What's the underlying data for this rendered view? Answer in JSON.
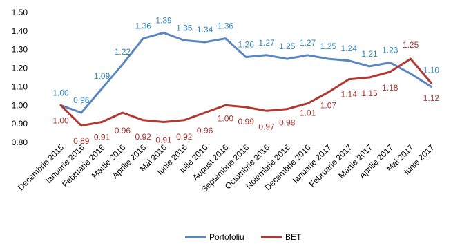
{
  "chart_data": {
    "type": "line",
    "categories": [
      "Decembrie 2015",
      "Ianuarie 2016",
      "Februarie 2016",
      "Martie 2016",
      "Aprilie 2016",
      "Mai 2016",
      "Iunie 2016",
      "Iulie 2016",
      "August 2016",
      "Septembrie 2016",
      "Octombrie 2016",
      "Noiembrie 2016",
      "Decembrie 2016",
      "Ianuarie 2017",
      "Februarie 2017",
      "Martie 2017",
      "Aprilie 2017",
      "Mai 2017",
      "Iunie 2017"
    ],
    "series": [
      {
        "name": "Portofoliu",
        "color": "#5b87c1",
        "label_color": "#2e86c1",
        "values": [
          1.0,
          0.96,
          1.09,
          1.22,
          1.36,
          1.39,
          1.35,
          1.34,
          1.36,
          1.26,
          1.27,
          1.25,
          1.27,
          1.25,
          1.24,
          1.21,
          1.23,
          1.17,
          1.1
        ],
        "labels": [
          "1.00",
          "0.96",
          "1.09",
          "1.22",
          "1.36",
          "1.39",
          "1.35",
          "1.34",
          "1.36",
          "1.26",
          "1.27",
          "1.25",
          "1.27",
          "1.25",
          "1.24",
          "1.21",
          "1.23",
          "",
          "1.10"
        ]
      },
      {
        "name": "BET",
        "color": "#b03a32",
        "label_color": "#a8322c",
        "values": [
          1.0,
          0.89,
          0.91,
          0.96,
          0.92,
          0.91,
          0.92,
          0.96,
          1.0,
          0.99,
          0.97,
          0.98,
          1.01,
          1.07,
          1.14,
          1.15,
          1.18,
          1.25,
          1.12
        ],
        "labels": [
          "1.00",
          "0.89",
          "0.91",
          "0.96",
          "0.92",
          "0.91",
          "0.92",
          "0.96",
          "1.00",
          "0.99",
          "0.97",
          "0.98",
          "1.01",
          "1.07",
          "1.14",
          "1.15",
          "1.18",
          "1.25",
          "1.12"
        ]
      }
    ],
    "ylim": [
      0.8,
      1.5
    ],
    "yticks": [
      "0.80",
      "0.90",
      "1.00",
      "1.10",
      "1.20",
      "1.30",
      "1.40",
      "1.50"
    ],
    "grid": false,
    "legend_position": "bottom"
  }
}
